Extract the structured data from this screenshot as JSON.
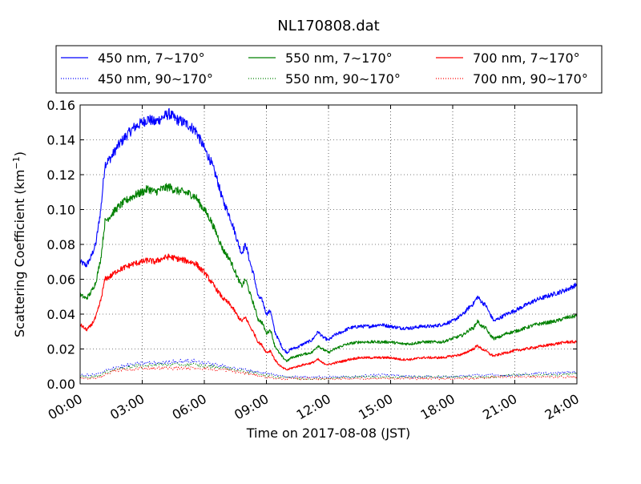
{
  "chart_data": {
    "type": "line",
    "title": "NL170808.dat",
    "xlabel": "Time on 2017-08-08 (JST)",
    "ylabel": "Scattering Coefficient (km",
    "ylabel_sup": "−1",
    "ylabel_suffix": ")",
    "xlim": [
      0,
      24
    ],
    "ylim": [
      0,
      0.16
    ],
    "x_ticks": [
      0,
      3,
      6,
      9,
      12,
      15,
      18,
      21,
      24
    ],
    "x_tick_labels": [
      "00:00",
      "03:00",
      "06:00",
      "09:00",
      "12:00",
      "15:00",
      "18:00",
      "21:00",
      "24:00"
    ],
    "y_ticks": [
      0,
      0.02,
      0.04,
      0.06,
      0.08,
      0.1,
      0.12,
      0.14,
      0.16
    ],
    "y_tick_labels": [
      "0.00",
      "0.02",
      "0.04",
      "0.06",
      "0.08",
      "0.10",
      "0.12",
      "0.14",
      "0.16"
    ],
    "grid": true,
    "legend_position": "top, above plot",
    "series": [
      {
        "name": "450 nm, 7∼170°",
        "color": "#0000ff",
        "style": "solid",
        "x": [
          0,
          0.3,
          0.5,
          0.75,
          1.0,
          1.2,
          1.5,
          1.8,
          2.2,
          2.6,
          3.0,
          3.3,
          3.6,
          4.0,
          4.3,
          4.6,
          5.0,
          5.3,
          5.6,
          5.8,
          6.0,
          6.3,
          6.6,
          6.9,
          7.2,
          7.4,
          7.6,
          7.8,
          8.0,
          8.2,
          8.4,
          8.6,
          8.8,
          9.0,
          9.2,
          9.4,
          9.6,
          9.8,
          10.0,
          10.2,
          10.5,
          10.8,
          11.2,
          11.5,
          11.7,
          12.0,
          12.3,
          12.7,
          13.0,
          13.5,
          14.0,
          14.5,
          15.0,
          15.5,
          16.0,
          16.5,
          17.0,
          17.5,
          18.0,
          18.5,
          18.8,
          19.0,
          19.2,
          19.4,
          19.6,
          19.8,
          20.0,
          20.3,
          20.6,
          21.0,
          21.5,
          22.0,
          22.5,
          23.0,
          23.5,
          24.0
        ],
        "y": [
          0.07,
          0.068,
          0.072,
          0.08,
          0.1,
          0.126,
          0.13,
          0.136,
          0.142,
          0.147,
          0.15,
          0.152,
          0.15,
          0.153,
          0.155,
          0.152,
          0.15,
          0.148,
          0.145,
          0.14,
          0.135,
          0.128,
          0.118,
          0.105,
          0.097,
          0.09,
          0.082,
          0.075,
          0.08,
          0.07,
          0.062,
          0.05,
          0.048,
          0.04,
          0.042,
          0.03,
          0.025,
          0.02,
          0.018,
          0.02,
          0.021,
          0.023,
          0.025,
          0.03,
          0.027,
          0.025,
          0.028,
          0.03,
          0.032,
          0.033,
          0.033,
          0.034,
          0.033,
          0.032,
          0.032,
          0.033,
          0.033,
          0.034,
          0.036,
          0.04,
          0.044,
          0.046,
          0.05,
          0.047,
          0.045,
          0.04,
          0.036,
          0.038,
          0.04,
          0.042,
          0.045,
          0.048,
          0.05,
          0.052,
          0.054,
          0.057
        ]
      },
      {
        "name": "550 nm, 7∼170°",
        "color": "#008000",
        "style": "solid",
        "x": [
          0,
          0.3,
          0.5,
          0.75,
          1.0,
          1.2,
          1.5,
          1.8,
          2.2,
          2.6,
          3.0,
          3.3,
          3.6,
          4.0,
          4.3,
          4.6,
          5.0,
          5.3,
          5.6,
          5.8,
          6.0,
          6.3,
          6.6,
          6.9,
          7.2,
          7.4,
          7.6,
          7.8,
          8.0,
          8.2,
          8.4,
          8.6,
          8.8,
          9.0,
          9.2,
          9.4,
          9.6,
          9.8,
          10.0,
          10.2,
          10.5,
          10.8,
          11.2,
          11.5,
          11.7,
          12.0,
          12.3,
          12.7,
          13.0,
          13.5,
          14.0,
          14.5,
          15.0,
          15.5,
          16.0,
          16.5,
          17.0,
          17.5,
          18.0,
          18.5,
          18.8,
          19.0,
          19.2,
          19.4,
          19.6,
          19.8,
          20.0,
          20.3,
          20.6,
          21.0,
          21.5,
          22.0,
          22.5,
          23.0,
          23.5,
          24.0
        ],
        "y": [
          0.051,
          0.049,
          0.052,
          0.058,
          0.072,
          0.093,
          0.097,
          0.101,
          0.105,
          0.108,
          0.11,
          0.112,
          0.11,
          0.112,
          0.113,
          0.111,
          0.11,
          0.109,
          0.107,
          0.103,
          0.1,
          0.094,
          0.086,
          0.077,
          0.072,
          0.067,
          0.061,
          0.056,
          0.06,
          0.052,
          0.045,
          0.037,
          0.035,
          0.029,
          0.031,
          0.022,
          0.018,
          0.015,
          0.013,
          0.015,
          0.016,
          0.017,
          0.018,
          0.022,
          0.02,
          0.018,
          0.02,
          0.022,
          0.023,
          0.024,
          0.024,
          0.024,
          0.024,
          0.023,
          0.023,
          0.024,
          0.024,
          0.024,
          0.026,
          0.028,
          0.031,
          0.032,
          0.036,
          0.033,
          0.032,
          0.028,
          0.026,
          0.027,
          0.029,
          0.03,
          0.032,
          0.034,
          0.035,
          0.036,
          0.038,
          0.039
        ]
      },
      {
        "name": "700 nm, 7∼170°",
        "color": "#ff0000",
        "style": "solid",
        "x": [
          0,
          0.3,
          0.5,
          0.75,
          1.0,
          1.2,
          1.5,
          1.8,
          2.2,
          2.6,
          3.0,
          3.3,
          3.6,
          4.0,
          4.3,
          4.6,
          5.0,
          5.3,
          5.6,
          5.8,
          6.0,
          6.3,
          6.6,
          6.9,
          7.2,
          7.4,
          7.6,
          7.8,
          8.0,
          8.2,
          8.4,
          8.6,
          8.8,
          9.0,
          9.2,
          9.4,
          9.6,
          9.8,
          10.0,
          10.2,
          10.5,
          10.8,
          11.2,
          11.5,
          11.7,
          12.0,
          12.3,
          12.7,
          13.0,
          13.5,
          14.0,
          14.5,
          15.0,
          15.5,
          16.0,
          16.5,
          17.0,
          17.5,
          18.0,
          18.5,
          18.8,
          19.0,
          19.2,
          19.4,
          19.6,
          19.8,
          20.0,
          20.3,
          20.6,
          21.0,
          21.5,
          22.0,
          22.5,
          23.0,
          23.5,
          24.0
        ],
        "y": [
          0.034,
          0.031,
          0.033,
          0.038,
          0.048,
          0.06,
          0.062,
          0.065,
          0.067,
          0.069,
          0.07,
          0.071,
          0.07,
          0.072,
          0.073,
          0.072,
          0.071,
          0.07,
          0.069,
          0.066,
          0.064,
          0.059,
          0.054,
          0.049,
          0.046,
          0.043,
          0.039,
          0.036,
          0.038,
          0.033,
          0.029,
          0.024,
          0.022,
          0.018,
          0.019,
          0.014,
          0.011,
          0.009,
          0.008,
          0.009,
          0.01,
          0.011,
          0.012,
          0.014,
          0.012,
          0.011,
          0.012,
          0.013,
          0.014,
          0.015,
          0.015,
          0.015,
          0.015,
          0.014,
          0.014,
          0.015,
          0.015,
          0.015,
          0.016,
          0.017,
          0.019,
          0.02,
          0.022,
          0.02,
          0.019,
          0.017,
          0.016,
          0.017,
          0.018,
          0.019,
          0.02,
          0.021,
          0.022,
          0.023,
          0.024,
          0.024
        ]
      },
      {
        "name": "450 nm, 90∼170°",
        "color": "#0000ff",
        "style": "dotted",
        "x": [
          0,
          0.5,
          1.0,
          1.5,
          2.0,
          2.5,
          3.0,
          3.5,
          4.0,
          4.5,
          5.0,
          5.5,
          6.0,
          6.5,
          7.0,
          7.5,
          8.0,
          8.5,
          9.0,
          9.5,
          10.0,
          10.5,
          11.0,
          12.0,
          13.0,
          14.0,
          15.0,
          16.0,
          17.0,
          18.0,
          19.0,
          20.0,
          21.0,
          22.0,
          23.0,
          24.0
        ],
        "y": [
          0.005,
          0.005,
          0.006,
          0.009,
          0.01,
          0.011,
          0.012,
          0.012,
          0.012,
          0.013,
          0.013,
          0.013,
          0.012,
          0.011,
          0.01,
          0.009,
          0.008,
          0.007,
          0.006,
          0.005,
          0.004,
          0.004,
          0.004,
          0.004,
          0.004,
          0.005,
          0.005,
          0.004,
          0.004,
          0.004,
          0.005,
          0.005,
          0.005,
          0.006,
          0.006,
          0.007
        ]
      },
      {
        "name": "550 nm, 90∼170°",
        "color": "#008000",
        "style": "dotted",
        "x": [
          0,
          0.5,
          1.0,
          1.5,
          2.0,
          2.5,
          3.0,
          3.5,
          4.0,
          4.5,
          5.0,
          5.5,
          6.0,
          6.5,
          7.0,
          7.5,
          8.0,
          8.5,
          9.0,
          9.5,
          10.0,
          10.5,
          11.0,
          12.0,
          13.0,
          14.0,
          15.0,
          16.0,
          17.0,
          18.0,
          19.0,
          20.0,
          21.0,
          22.0,
          23.0,
          24.0
        ],
        "y": [
          0.004,
          0.004,
          0.005,
          0.008,
          0.009,
          0.01,
          0.01,
          0.011,
          0.011,
          0.011,
          0.011,
          0.011,
          0.01,
          0.01,
          0.009,
          0.008,
          0.007,
          0.006,
          0.005,
          0.004,
          0.004,
          0.003,
          0.003,
          0.003,
          0.004,
          0.004,
          0.004,
          0.004,
          0.004,
          0.004,
          0.004,
          0.004,
          0.005,
          0.005,
          0.005,
          0.006
        ]
      },
      {
        "name": "700 nm, 90∼170°",
        "color": "#ff0000",
        "style": "dotted",
        "x": [
          0,
          0.5,
          1.0,
          1.5,
          2.0,
          2.5,
          3.0,
          3.5,
          4.0,
          4.5,
          5.0,
          5.5,
          6.0,
          6.5,
          7.0,
          7.5,
          8.0,
          8.5,
          9.0,
          9.5,
          10.0,
          10.5,
          11.0,
          12.0,
          13.0,
          14.0,
          15.0,
          16.0,
          17.0,
          18.0,
          19.0,
          20.0,
          21.0,
          22.0,
          23.0,
          24.0
        ],
        "y": [
          0.003,
          0.003,
          0.004,
          0.007,
          0.008,
          0.008,
          0.009,
          0.009,
          0.009,
          0.009,
          0.009,
          0.009,
          0.009,
          0.008,
          0.008,
          0.007,
          0.006,
          0.005,
          0.004,
          0.003,
          0.003,
          0.003,
          0.003,
          0.003,
          0.003,
          0.003,
          0.003,
          0.003,
          0.003,
          0.003,
          0.003,
          0.004,
          0.004,
          0.004,
          0.004,
          0.004
        ]
      }
    ]
  }
}
